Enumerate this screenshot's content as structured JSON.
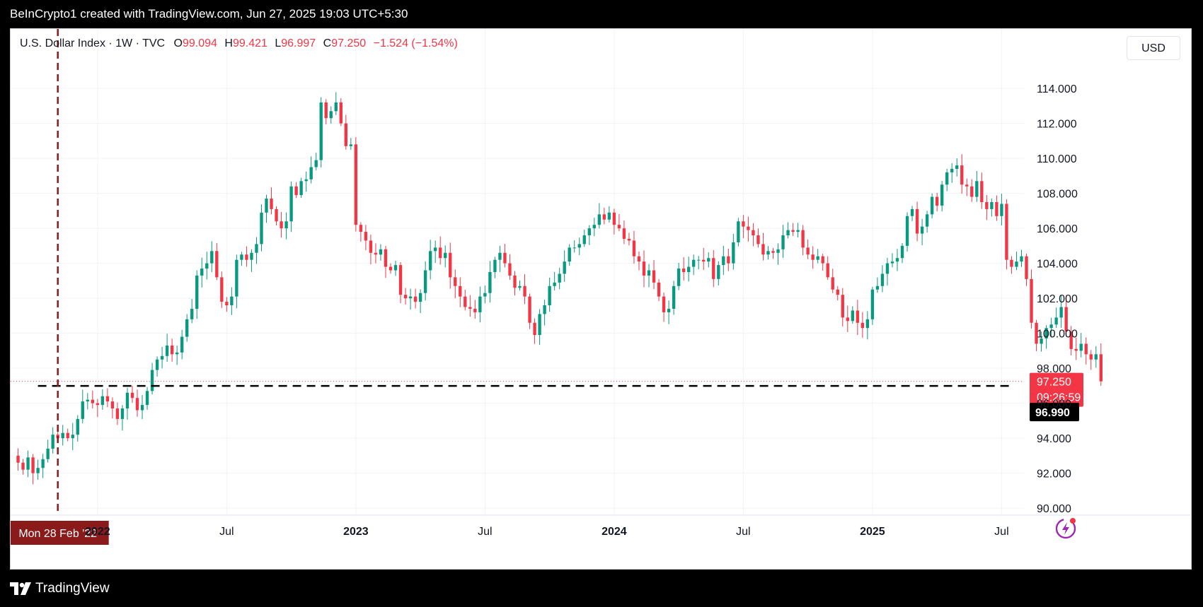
{
  "header": {
    "attribution": "BeInCrypto1 created with TradingView.com, Jun 27, 2025 19:03 UTC+5:30"
  },
  "footer": {
    "brand": "TradingView"
  },
  "legend": {
    "symbol": "U.S. Dollar Index · 1W · TVC",
    "o_label": "O",
    "o_value": "99.094",
    "h_label": "H",
    "h_value": "99.421",
    "l_label": "L",
    "l_value": "96.997",
    "c_label": "C",
    "c_value": "97.250",
    "change": "−1.524 (−1.54%)"
  },
  "currency": "USD",
  "colors": {
    "up": "#089981",
    "down": "#f23645",
    "grid": "#f0f3fa",
    "vline": "#8b1a1a",
    "label_bg": "#8b1a1a"
  },
  "chart_data": {
    "type": "candlestick",
    "title": "U.S. Dollar Index · 1W · TVC",
    "ylim": [
      89.6,
      117.4
    ],
    "yticks": [
      "90.000",
      "92.000",
      "94.000",
      "96.000",
      "98.000",
      "100.000",
      "102.000",
      "104.000",
      "106.000",
      "108.000",
      "110.000",
      "112.000",
      "114.000"
    ],
    "ytick_values": [
      90,
      92,
      94,
      96,
      98,
      100,
      102,
      104,
      106,
      108,
      110,
      112,
      114
    ],
    "xticks": [
      {
        "label": "2022",
        "week": 0
      },
      {
        "label": "Jul",
        "week": 26
      },
      {
        "label": "2023",
        "week": 52
      },
      {
        "label": "Jul",
        "week": 78
      },
      {
        "label": "2024",
        "week": 104
      },
      {
        "label": "Jul",
        "week": 130
      },
      {
        "label": "2025",
        "week": 156
      },
      {
        "label": "Jul",
        "week": 182
      }
    ],
    "week_range": [
      -17.5,
      186.5
    ],
    "first_week": -16,
    "closes": [
      92.6,
      92.2,
      92.9,
      92.0,
      92.3,
      92.8,
      93.4,
      94.2,
      94.0,
      94.3,
      94.0,
      94.2,
      95.1,
      96.1,
      96.2,
      96.0,
      95.9,
      96.4,
      96.1,
      95.7,
      95.1,
      95.7,
      96.6,
      96.3,
      95.6,
      95.9,
      96.7,
      97.9,
      98.5,
      98.7,
      99.3,
      98.8,
      98.9,
      99.8,
      100.8,
      101.4,
      103.3,
      103.7,
      104.0,
      104.7,
      103.2,
      101.8,
      101.6,
      102.1,
      104.2,
      104.5,
      104.2,
      104.6,
      105.1,
      106.9,
      107.7,
      107.1,
      106.4,
      106.0,
      106.4,
      108.4,
      107.9,
      108.7,
      108.8,
      109.5,
      109.9,
      113.2,
      112.3,
      112.7,
      113.2,
      112.0,
      110.7,
      110.8,
      106.2,
      105.8,
      105.3,
      104.6,
      104.5,
      104.8,
      103.8,
      103.6,
      103.9,
      102.2,
      102.0,
      102.1,
      101.8,
      102.3,
      103.6,
      104.7,
      104.9,
      104.3,
      104.6,
      103.2,
      102.7,
      102.1,
      101.5,
      101.4,
      101.2,
      102.1,
      102.3,
      103.5,
      104.2,
      104.6,
      104.0,
      103.3,
      102.6,
      102.7,
      102.1,
      100.6,
      99.9,
      101.1,
      101.6,
      102.7,
      102.9,
      103.4,
      104.1,
      104.9,
      104.9,
      105.1,
      105.6,
      106.0,
      106.2,
      106.8,
      106.5,
      106.9,
      106.2,
      106.0,
      105.4,
      105.3,
      104.4,
      104.1,
      103.3,
      103.6,
      102.9,
      102.1,
      101.2,
      101.4,
      102.7,
      103.7,
      103.5,
      103.8,
      104.2,
      104.2,
      104.1,
      104.3,
      103.1,
      103.9,
      104.4,
      104.0,
      105.2,
      106.4,
      106.1,
      105.9,
      105.6,
      105.1,
      104.5,
      104.7,
      104.6,
      104.8,
      105.6,
      105.9,
      105.8,
      105.9,
      104.9,
      104.5,
      104.2,
      104.4,
      104.0,
      103.2,
      102.5,
      102.2,
      100.9,
      100.7,
      101.3,
      100.6,
      100.3,
      100.8,
      102.5,
      102.7,
      103.4,
      104.0,
      104.1,
      104.3,
      105.0,
      106.7,
      107.1,
      105.7,
      106.1,
      106.8,
      107.8,
      107.3,
      108.5,
      109.2,
      109.4,
      109.6,
      108.5,
      108.4,
      107.8,
      108.7,
      107.5,
      107.1,
      107.5,
      106.7,
      107.4,
      104.2,
      103.8,
      104.1,
      104.4,
      103.1,
      100.6,
      99.4,
      99.7,
      100.3,
      100.5,
      100.9,
      101.5,
      100.1,
      99.1,
      99.0,
      99.4,
      98.8,
      98.5,
      98.8,
      97.25
    ],
    "last_price": "97.250",
    "countdown": "09:26:59",
    "support_level": 96.99,
    "support_label": "96.990",
    "crosshair_week": -8,
    "crosshair_label": "Mon 28 Feb '22"
  }
}
